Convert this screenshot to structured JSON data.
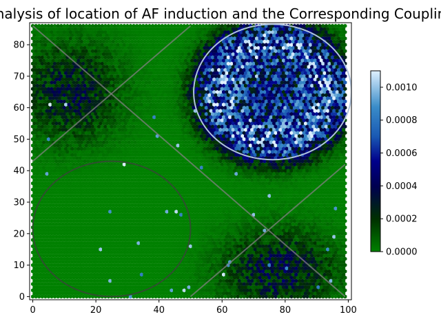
{
  "chart_data": {
    "type": "heatmap",
    "subtype": "hexbin",
    "title": "Analysis of location of AF induction and the Corresponding Coupling",
    "xlabel": "",
    "ylabel": "",
    "xlim": [
      -1,
      101
    ],
    "ylim": [
      -1,
      87
    ],
    "x_ticks": [
      0,
      20,
      40,
      60,
      80,
      100
    ],
    "y_ticks": [
      0,
      10,
      20,
      30,
      40,
      50,
      60,
      70,
      80
    ],
    "grid": false,
    "colormap": [
      "#008000",
      "#003000",
      "#000050",
      "#00008b",
      "#1a5ab4",
      "#3a8cc8",
      "#dff0ff"
    ],
    "colorbar": {
      "range": [
        0,
        0.0011
      ],
      "ticks": [
        "0.0000",
        "0.0002",
        "0.0004",
        "0.0006",
        "0.0008",
        "0.0010"
      ],
      "tick_values": [
        0,
        0.0002,
        0.0004,
        0.0006,
        0.0008,
        0.001
      ]
    },
    "hexbin_extent": {
      "x": [
        0,
        99
      ],
      "y": [
        0,
        86
      ]
    },
    "background_value": 0,
    "high_density_regions": [
      {
        "region": "upper-right ellipse",
        "center": [
          76,
          65
        ],
        "peak_value": 0.0011
      },
      {
        "region": "upper-left corner",
        "center": [
          12,
          65
        ],
        "peak_value": 0.0004
      },
      {
        "region": "lower-right corner",
        "center": [
          78,
          8
        ],
        "peak_value": 0.0005
      }
    ],
    "overlay_lines": [
      {
        "name": "diagonal-a",
        "from": [
          0,
          86
        ],
        "to": [
          99,
          0
        ],
        "color": "#808080"
      },
      {
        "name": "diagonal-b",
        "from": [
          0,
          43
        ],
        "to": [
          50,
          86
        ],
        "color": "#808080"
      },
      {
        "name": "diagonal-c",
        "from": [
          50,
          0
        ],
        "to": [
          99,
          42
        ],
        "color": "#808080"
      }
    ],
    "overlay_ellipses": [
      {
        "name": "ellipse-upper-right",
        "center": [
          76,
          65
        ],
        "rx": 25,
        "ry": 21.5,
        "color": "#b0c4de"
      },
      {
        "name": "ellipse-lower-left",
        "center": [
          25,
          21.5
        ],
        "rx": 25,
        "ry": 21.5,
        "color": "#2f4f2f"
      }
    ]
  }
}
